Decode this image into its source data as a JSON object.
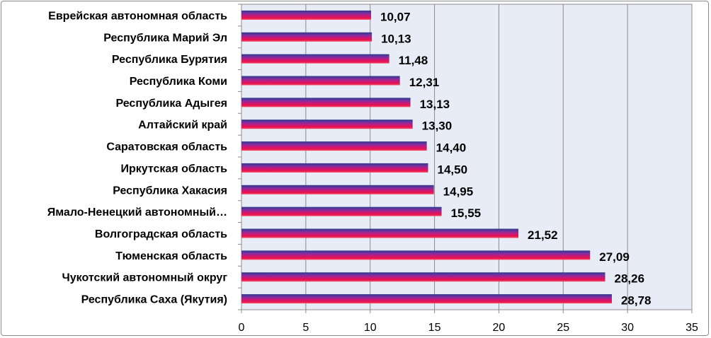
{
  "chart_data": {
    "type": "bar",
    "orientation": "horizontal",
    "title": "",
    "xlabel": "",
    "ylabel": "",
    "categories": [
      "Еврейская автономная область",
      "Республика Марий Эл",
      "Республика Бурятия",
      "Республика Коми",
      "Республика Адыгея",
      "Алтайский край",
      "Саратовская область",
      "Иркутская область",
      "Республика Хакасия",
      "Ямало-Ненецкий автономный…",
      "Волгоградская область",
      "Тюменская область",
      "Чукотский автономный округ",
      "Республика Саха (Якутия)"
    ],
    "values": [
      10.07,
      10.13,
      11.48,
      12.31,
      13.13,
      13.3,
      14.4,
      14.5,
      14.95,
      15.55,
      21.52,
      27.09,
      28.26,
      28.78
    ],
    "value_labels": [
      "10,07",
      "10,13",
      "11,48",
      "12,31",
      "13,13",
      "13,30",
      "14,40",
      "14,50",
      "14,95",
      "15,55",
      "21,52",
      "27,09",
      "28,26",
      "28,78"
    ],
    "xlim": [
      0,
      35
    ],
    "x_ticks": [
      "0",
      "5",
      "10",
      "15",
      "20",
      "25",
      "30",
      "35"
    ],
    "grid": "vertical",
    "legend": "none",
    "colors": {
      "plot_background": "#e8ecf7",
      "gridline": "#8c8c8c",
      "bar_gradient": [
        "#2e3a8c",
        "#7b2fa0",
        "#c4197e",
        "#e8124d",
        "#f24b6a"
      ]
    }
  }
}
